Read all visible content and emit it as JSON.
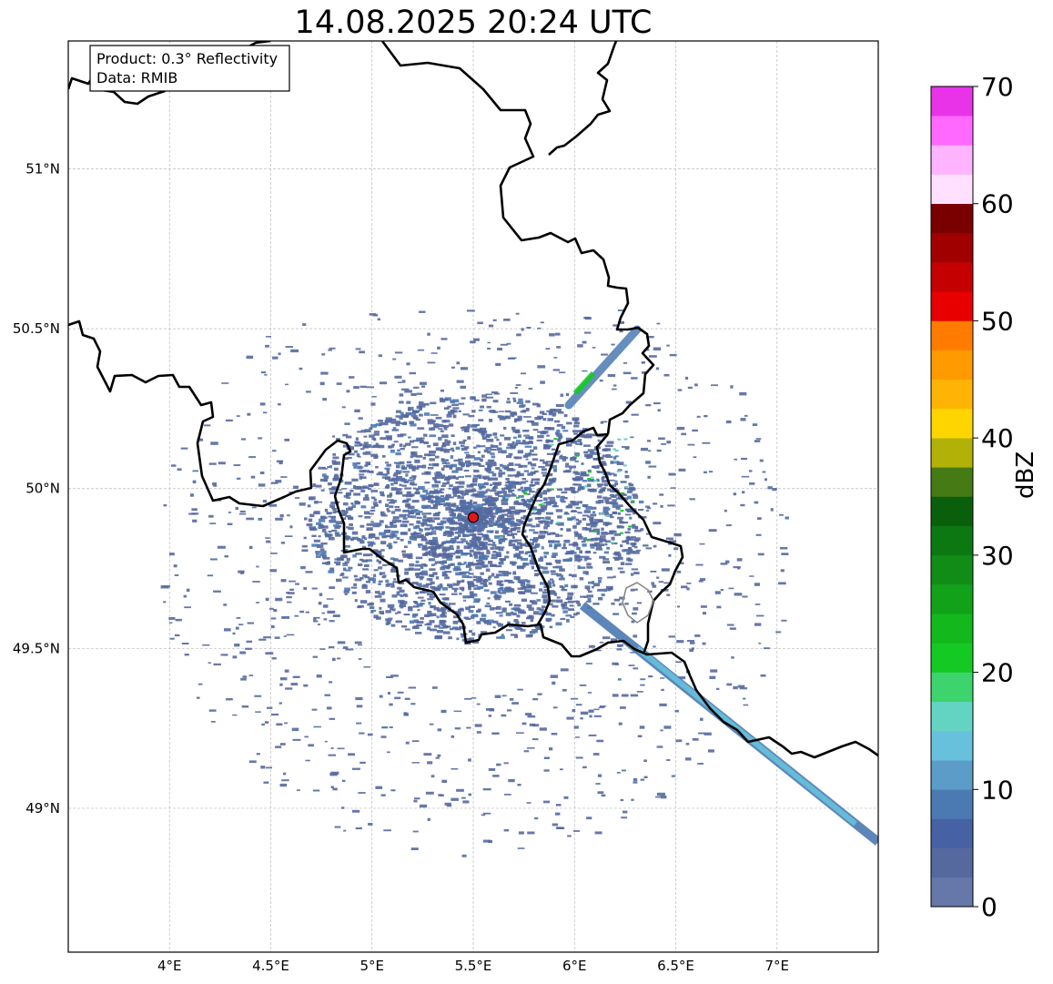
{
  "title": "14.08.2025 20:24 UTC",
  "info_box": {
    "product": "Product: 0.3° Reflectivity",
    "data": "Data: RMIB"
  },
  "map": {
    "lon_range": [
      3.5,
      7.5
    ],
    "lat_range": [
      48.55,
      51.4
    ],
    "lon_ticks": [
      {
        "value": 4.0,
        "label": "4°E"
      },
      {
        "value": 4.5,
        "label": "4.5°E"
      },
      {
        "value": 5.0,
        "label": "5°E"
      },
      {
        "value": 5.5,
        "label": "5.5°E"
      },
      {
        "value": 6.0,
        "label": "6°E"
      },
      {
        "value": 6.5,
        "label": "6.5°E"
      },
      {
        "value": 7.0,
        "label": "7°E"
      }
    ],
    "lat_ticks": [
      {
        "value": 51.0,
        "label": "51°N"
      },
      {
        "value": 50.5,
        "label": "50.5°N"
      },
      {
        "value": 50.0,
        "label": "50°N"
      },
      {
        "value": 49.5,
        "label": "49.5°N"
      },
      {
        "value": 49.0,
        "label": "49°N"
      }
    ],
    "gridlines": true,
    "radar_site": {
      "lon": 5.5,
      "lat": 49.91,
      "color": "#e8131b"
    },
    "echo_color": "#5b78ad",
    "borders_color": "#000000",
    "region_border_color": "#888888"
  },
  "colorbar": {
    "label": "dBZ",
    "min": 0,
    "max": 70,
    "ticks": [
      {
        "value": 0,
        "label": "0"
      },
      {
        "value": 10,
        "label": "10"
      },
      {
        "value": 20,
        "label": "20"
      },
      {
        "value": 30,
        "label": "30"
      },
      {
        "value": 40,
        "label": "40"
      },
      {
        "value": 50,
        "label": "50"
      },
      {
        "value": 60,
        "label": "60"
      },
      {
        "value": 70,
        "label": "70"
      }
    ],
    "colors": [
      "#6677aa",
      "#55699f",
      "#4762a4",
      "#4b7ab3",
      "#5b9dc8",
      "#67c1dc",
      "#64d4c2",
      "#3dd36d",
      "#15c924",
      "#13b81c",
      "#12a21a",
      "#118d17",
      "#0c7812",
      "#0a5f0c",
      "#457a14",
      "#b1b108",
      "#ffd500",
      "#ffb405",
      "#ff9a00",
      "#ff7c00",
      "#e80000",
      "#c50000",
      "#a10000",
      "#7a0000",
      "#ffe1ff",
      "#ffb4ff",
      "#ff69ff",
      "#e833e8"
    ]
  }
}
